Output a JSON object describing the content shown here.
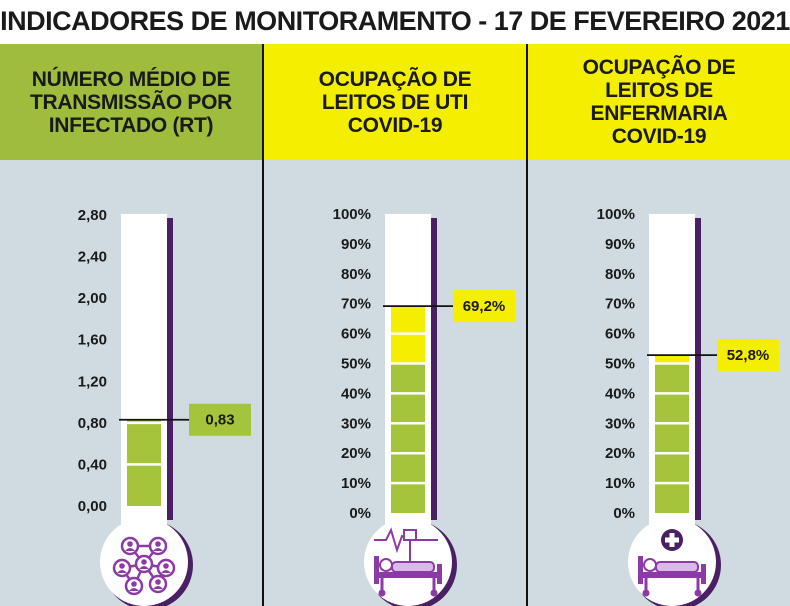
{
  "title": "INDICADORES DE MONITORAMENTO - 17 DE FEVEREIRO 2021",
  "colors": {
    "green": "#a4c43b",
    "yellow": "#f4ee00",
    "panel_bg": "#cfdbe0",
    "purple": "#4a1f63",
    "icon_purple": "#8c3aa5"
  },
  "panels": [
    {
      "header": "NÚMERO MÉDIO DE\nTRANSMISSÃO POR\nINFECTADO (RT)",
      "header_color": "#9ebd3c",
      "ticks": [
        "2,80",
        "2,40",
        "2,00",
        "1,60",
        "1,20",
        "0,80",
        "0,40",
        "0,00"
      ],
      "scale_max": 2.8,
      "value": 0.83,
      "value_label": "0,83",
      "green_upto": 0.83,
      "callout_color": "#a4c43b",
      "icon": "people-network-icon"
    },
    {
      "header": "OCUPAÇÃO DE\nLEITOS DE UTI\nCOVID-19",
      "header_color": "#f4ee00",
      "ticks": [
        "100%",
        "90%",
        "80%",
        "70%",
        "60%",
        "50%",
        "40%",
        "30%",
        "20%",
        "10%",
        "0%"
      ],
      "scale_max": 100,
      "value": 69.2,
      "value_label": "69,2%",
      "green_upto": 50,
      "callout_color": "#f4ee00",
      "icon": "icu-bed-icon"
    },
    {
      "header": "OCUPAÇÃO DE\nLEITOS DE\nENFERMARIA\nCOVID-19",
      "header_color": "#f4ee00",
      "ticks": [
        "100%",
        "90%",
        "80%",
        "70%",
        "60%",
        "50%",
        "40%",
        "30%",
        "20%",
        "10%",
        "0%"
      ],
      "scale_max": 100,
      "value": 52.8,
      "value_label": "52,8%",
      "green_upto": 50,
      "callout_color": "#f4ee00",
      "icon": "ward-bed-icon"
    }
  ]
}
